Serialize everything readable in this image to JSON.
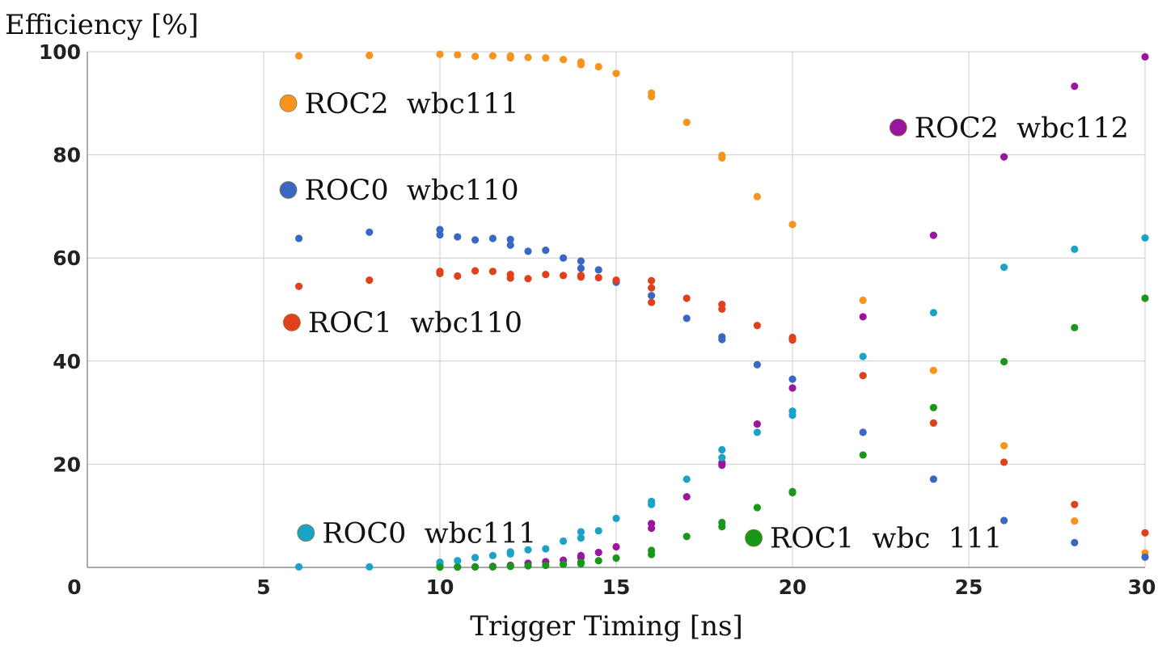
{
  "chart_data": {
    "type": "scatter",
    "title": "",
    "ylabel": "Efficiency [%]",
    "xlabel": "Trigger Timing [ns]",
    "xlim": [
      0,
      30
    ],
    "ylim": [
      0,
      100
    ],
    "grid": true,
    "x_ticks": [
      {
        "value": 0,
        "label": "0"
      },
      {
        "value": 5,
        "label": "5"
      },
      {
        "value": 10,
        "label": "10"
      },
      {
        "value": 15,
        "label": "15"
      },
      {
        "value": 20,
        "label": "20"
      },
      {
        "value": 25,
        "label": "25"
      },
      {
        "value": 30,
        "label": "30"
      }
    ],
    "y_ticks": [
      {
        "value": 20,
        "label": "20"
      },
      {
        "value": 40,
        "label": "40"
      },
      {
        "value": 60,
        "label": "60"
      },
      {
        "value": 80,
        "label": "80"
      },
      {
        "value": 100,
        "label": "100"
      }
    ],
    "series": [
      {
        "name": "ROC2 wbc111",
        "color": "#f7941d",
        "points": [
          [
            6,
            99.2
          ],
          [
            8,
            99.3
          ],
          [
            10,
            99.5
          ],
          [
            10.5,
            99.4
          ],
          [
            11,
            99.1
          ],
          [
            11.5,
            99.2
          ],
          [
            12,
            99.2
          ],
          [
            12,
            98.8
          ],
          [
            12.5,
            98.9
          ],
          [
            13,
            98.8
          ],
          [
            13.5,
            98.5
          ],
          [
            14,
            98.0
          ],
          [
            14,
            97.5
          ],
          [
            14.5,
            97.1
          ],
          [
            15,
            95.8
          ],
          [
            16,
            92.0
          ],
          [
            16,
            91.3
          ],
          [
            17,
            86.3
          ],
          [
            18,
            79.9
          ],
          [
            18,
            79.4
          ],
          [
            19,
            71.9
          ],
          [
            20,
            66.5
          ],
          [
            22,
            51.8
          ],
          [
            24,
            38.2
          ],
          [
            26,
            23.6
          ],
          [
            28,
            9.0
          ],
          [
            30,
            2.8
          ]
        ]
      },
      {
        "name": "ROC0 wbc110",
        "color": "#3a66c4",
        "points": [
          [
            6,
            63.8
          ],
          [
            8,
            65.0
          ],
          [
            10,
            65.5
          ],
          [
            10,
            64.5
          ],
          [
            10.5,
            64.1
          ],
          [
            11,
            63.5
          ],
          [
            11.5,
            63.8
          ],
          [
            12,
            63.6
          ],
          [
            12,
            62.5
          ],
          [
            12.5,
            61.3
          ],
          [
            13,
            61.5
          ],
          [
            13.5,
            60.0
          ],
          [
            14,
            59.4
          ],
          [
            14,
            58.0
          ],
          [
            14.5,
            57.7
          ],
          [
            15,
            55.3
          ],
          [
            16,
            52.7
          ],
          [
            17,
            48.3
          ],
          [
            18,
            44.7
          ],
          [
            18,
            44.2
          ],
          [
            19,
            39.3
          ],
          [
            20,
            36.5
          ],
          [
            22,
            26.2
          ],
          [
            24,
            17.1
          ],
          [
            26,
            9.1
          ],
          [
            28,
            4.8
          ],
          [
            30,
            2.0
          ]
        ]
      },
      {
        "name": "ROC1 wbc110",
        "color": "#e0411a",
        "points": [
          [
            6,
            54.5
          ],
          [
            8,
            55.7
          ],
          [
            10,
            57.4
          ],
          [
            10,
            57.0
          ],
          [
            10.5,
            56.5
          ],
          [
            11,
            57.5
          ],
          [
            11.5,
            57.4
          ],
          [
            12,
            56.8
          ],
          [
            12,
            56.1
          ],
          [
            12.5,
            56.0
          ],
          [
            13,
            56.8
          ],
          [
            13.5,
            56.6
          ],
          [
            14,
            56.6
          ],
          [
            14,
            56.3
          ],
          [
            14.5,
            56.2
          ],
          [
            15,
            55.7
          ],
          [
            16,
            55.6
          ],
          [
            16,
            54.2
          ],
          [
            16,
            51.4
          ],
          [
            17,
            52.2
          ],
          [
            18,
            51.0
          ],
          [
            18,
            50.1
          ],
          [
            19,
            46.9
          ],
          [
            20,
            44.6
          ],
          [
            20,
            44.1
          ],
          [
            22,
            37.2
          ],
          [
            24,
            28.0
          ],
          [
            26,
            20.4
          ],
          [
            28,
            12.2
          ],
          [
            30,
            6.7
          ]
        ]
      },
      {
        "name": "ROC2 wbc112",
        "color": "#9a169e",
        "points": [
          [
            10,
            0.1
          ],
          [
            10.5,
            0.1
          ],
          [
            11,
            0.1
          ],
          [
            11.5,
            0.2
          ],
          [
            12,
            0.4
          ],
          [
            12.5,
            0.8
          ],
          [
            13,
            1.1
          ],
          [
            13.5,
            1.4
          ],
          [
            14,
            1.9
          ],
          [
            14,
            2.3
          ],
          [
            14.5,
            2.9
          ],
          [
            15,
            4.0
          ],
          [
            16,
            7.6
          ],
          [
            16,
            8.5
          ],
          [
            17,
            13.7
          ],
          [
            18,
            19.8
          ],
          [
            18,
            20.3
          ],
          [
            19,
            27.8
          ],
          [
            20,
            34.8
          ],
          [
            22,
            48.6
          ],
          [
            24,
            64.4
          ],
          [
            26,
            79.6
          ],
          [
            28,
            93.3
          ],
          [
            30,
            99.0
          ]
        ]
      },
      {
        "name": "ROC0 wbc111",
        "color": "#1aa3c6",
        "points": [
          [
            6,
            0.1
          ],
          [
            8,
            0.1
          ],
          [
            10,
            0.5
          ],
          [
            10,
            1.0
          ],
          [
            10.5,
            1.3
          ],
          [
            11,
            1.9
          ],
          [
            11.5,
            2.3
          ],
          [
            12,
            2.6
          ],
          [
            12,
            3.0
          ],
          [
            12.5,
            3.4
          ],
          [
            13,
            3.6
          ],
          [
            13.5,
            5.1
          ],
          [
            14,
            5.7
          ],
          [
            14,
            6.9
          ],
          [
            14.5,
            7.1
          ],
          [
            15,
            9.5
          ],
          [
            16,
            12.2
          ],
          [
            16,
            12.8
          ],
          [
            17,
            17.1
          ],
          [
            18,
            21.3
          ],
          [
            18,
            22.8
          ],
          [
            19,
            26.2
          ],
          [
            20,
            29.5
          ],
          [
            20,
            30.3
          ],
          [
            22,
            40.9
          ],
          [
            24,
            49.4
          ],
          [
            26,
            58.2
          ],
          [
            28,
            61.7
          ],
          [
            30,
            63.9
          ]
        ]
      },
      {
        "name": "ROC1 wbc 111",
        "color": "#1a961a",
        "points": [
          [
            10,
            0.05
          ],
          [
            10.5,
            0.05
          ],
          [
            11,
            0.1
          ],
          [
            11.5,
            0.1
          ],
          [
            12,
            0.2
          ],
          [
            12.5,
            0.3
          ],
          [
            13,
            0.4
          ],
          [
            13.5,
            0.6
          ],
          [
            14,
            0.7
          ],
          [
            14,
            1.0
          ],
          [
            14.5,
            1.3
          ],
          [
            15,
            1.8
          ],
          [
            16,
            2.5
          ],
          [
            16,
            3.3
          ],
          [
            17,
            6.0
          ],
          [
            18,
            7.9
          ],
          [
            18,
            8.7
          ],
          [
            19,
            11.6
          ],
          [
            20,
            14.5
          ],
          [
            20,
            14.7
          ],
          [
            22,
            21.8
          ],
          [
            24,
            31.0
          ],
          [
            26,
            39.9
          ],
          [
            28,
            46.5
          ],
          [
            30,
            52.2
          ]
        ]
      }
    ],
    "annotations": [
      {
        "series": 0,
        "label": "ROC2  wbc111",
        "x": 5.7,
        "y": 90.0
      },
      {
        "series": 1,
        "label": "ROC0  wbc110",
        "x": 5.7,
        "y": 73.2
      },
      {
        "series": 2,
        "label": "ROC1  wbc110",
        "x": 5.8,
        "y": 47.5
      },
      {
        "series": 3,
        "label": "ROC2  wbc112",
        "x": 23.0,
        "y": 85.3
      },
      {
        "series": 4,
        "label": "ROC0  wbc111",
        "x": 6.2,
        "y": 6.7
      },
      {
        "series": 5,
        "label": "ROC1  wbc  111",
        "x": 18.9,
        "y": 5.7
      }
    ]
  }
}
